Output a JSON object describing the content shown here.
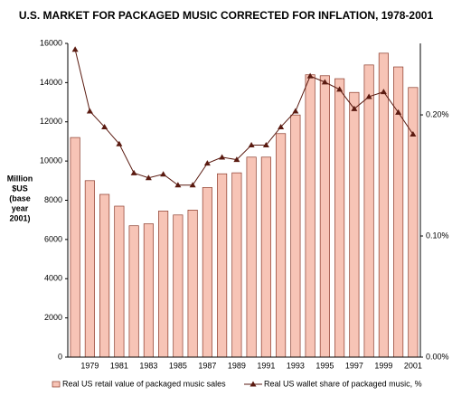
{
  "chart_data": {
    "type": "bar_line",
    "title": "U.S. MARKET FOR PACKAGED MUSIC CORRECTED FOR INFLATION, 1978-2001",
    "y_label": [
      "Million",
      "$US",
      "(base",
      "year",
      "2001)"
    ],
    "categories": [
      null,
      "1979",
      null,
      "1981",
      null,
      "1983",
      null,
      "1985",
      null,
      "1987",
      null,
      "1989",
      null,
      "1991",
      null,
      "1993",
      null,
      "1995",
      null,
      "1997",
      null,
      "1999",
      null,
      "2001"
    ],
    "series": [
      {
        "name": "Real US retail value of  packaged music sales",
        "color": "#f7c4b6",
        "type": "bar",
        "values": [
          11200,
          9000,
          8300,
          7700,
          6700,
          6800,
          7450,
          7250,
          7500,
          8650,
          9350,
          9400,
          10200,
          10200,
          11400,
          12350,
          14400,
          14350,
          14200,
          13500,
          14900,
          15500,
          14800,
          13750
        ]
      },
      {
        "name": "Real US wallet share of packaged music, %",
        "color": "#5a1a10",
        "type": "line",
        "axis": "y2",
        "values": [
          0.254,
          0.203,
          0.19,
          0.176,
          0.152,
          0.148,
          0.151,
          0.142,
          0.142,
          0.16,
          0.165,
          0.163,
          0.175,
          0.175,
          0.19,
          0.203,
          0.232,
          0.227,
          0.221,
          0.205,
          0.215,
          0.219,
          0.202,
          0.184
        ]
      }
    ],
    "ylim": [
      0,
      16000
    ],
    "yticks": [
      0,
      2000,
      4000,
      6000,
      8000,
      10000,
      12000,
      14000,
      16000
    ],
    "y2lim": [
      0,
      0.259
    ],
    "y2ticks": [
      {
        "value": 0,
        "label": "0.00%"
      },
      {
        "value": 0.1,
        "label": "0.10%"
      },
      {
        "value": 0.2,
        "label": "0.20%"
      }
    ],
    "legend": "bottom"
  }
}
